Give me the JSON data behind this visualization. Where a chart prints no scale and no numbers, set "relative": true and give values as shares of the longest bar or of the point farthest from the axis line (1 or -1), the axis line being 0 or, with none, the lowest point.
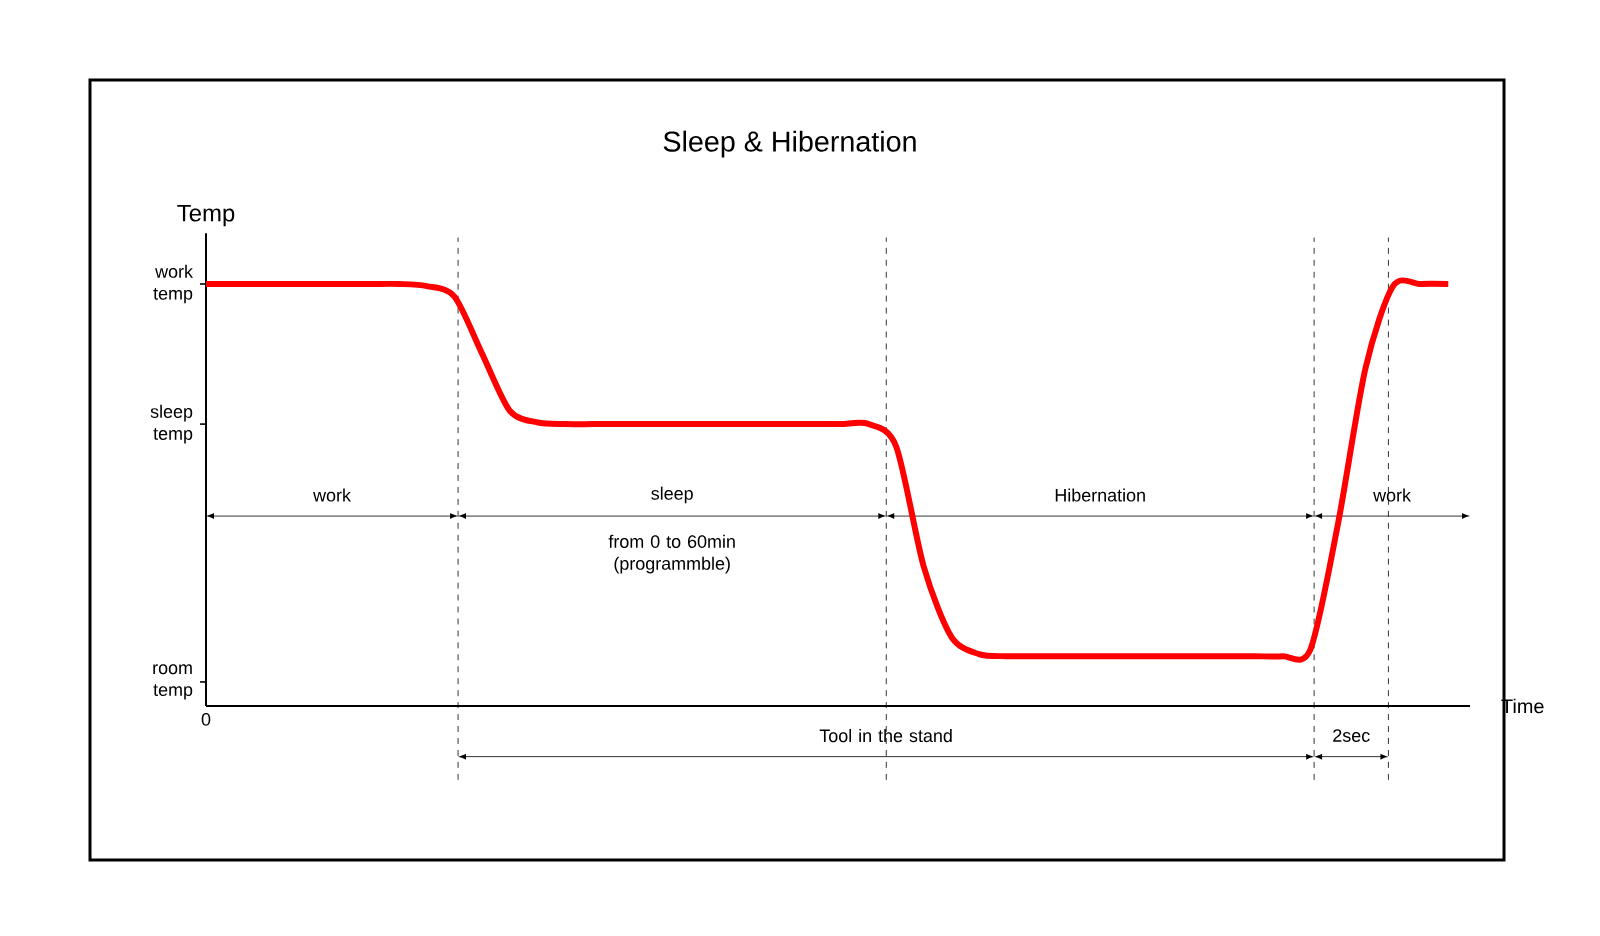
{
  "chart_data": {
    "type": "line",
    "title": "Sleep & Hibernation",
    "xlabel": "Time",
    "ylabel": "Temp",
    "relative": true,
    "categories": [
      null,
      null,
      null,
      null,
      null,
      null,
      null,
      null,
      null,
      null,
      null,
      null,
      null,
      null,
      null,
      null,
      null,
      null,
      null,
      null,
      null,
      null,
      null,
      null,
      null,
      null,
      null,
      null,
      null,
      null,
      null,
      null,
      null,
      null,
      null,
      null,
      null,
      null,
      null,
      null,
      null,
      null,
      null,
      null,
      null,
      null
    ],
    "series": [
      {
        "color": "#ff0000",
        "values": [
          1.0,
          1.0,
          1.0,
          1.0,
          1.0,
          1.0,
          1.0,
          1.0,
          0.995,
          0.97,
          0.835,
          0.7,
          0.672,
          0.668,
          0.668,
          0.668,
          0.668,
          0.668,
          0.668,
          0.668,
          0.668,
          0.668,
          0.668,
          0.668,
          0.668,
          0.615,
          0.33,
          0.164,
          0.123,
          0.118,
          0.118,
          0.118,
          0.118,
          0.118,
          0.118,
          0.118,
          0.118,
          0.118,
          0.118,
          0.118,
          0.133,
          0.43,
          0.8,
          0.995,
          1.0,
          1.0
        ]
      }
    ],
    "grid": "x",
    "annotations": [
      "work temp",
      "sleep temp",
      "room temp",
      "0",
      "work",
      "sleep",
      "from 0 to 60min (programmble)",
      "Hibernation",
      "work",
      "Tool in the stand",
      "2sec"
    ],
    "marker": "none",
    "line_style": "solid"
  }
}
